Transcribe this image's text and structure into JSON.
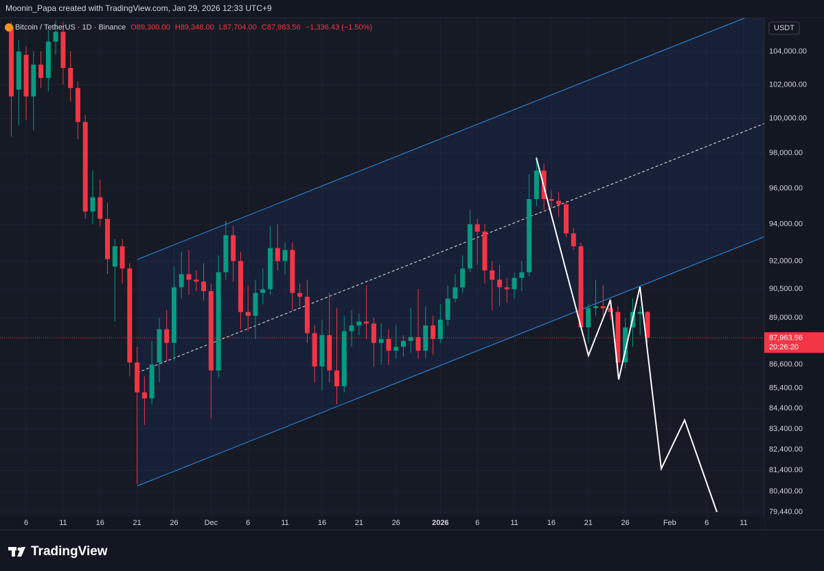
{
  "header_text": "Moonin_Papa created with TradingView.com, Jan 29, 2026 12:33 UTC+9",
  "branding": "TradingView",
  "chart_data": {
    "type": "candlestick",
    "legend": {
      "symbol": "Bitcoin / TetherUS · 1D · Binance",
      "open": "O89,300.00",
      "high": "H89,348.00",
      "low": "L87,704.00",
      "close": "C87,963.56",
      "change": "−1,336.43 (−1.50%)"
    },
    "currency": "USDT",
    "last_price_label": "87,963.56",
    "countdown": "20:26:20",
    "log_scale": true,
    "grid": true,
    "up_color": "#089981",
    "down_color": "#f23645",
    "categories": [
      null,
      null,
      "6",
      null,
      null,
      null,
      null,
      "11",
      null,
      null,
      null,
      null,
      "16",
      null,
      null,
      null,
      null,
      "21",
      null,
      null,
      null,
      null,
      "26",
      null,
      null,
      null,
      null,
      "Dec",
      null,
      null,
      null,
      null,
      "6",
      null,
      null,
      null,
      null,
      "11",
      null,
      null,
      null,
      null,
      "16",
      null,
      null,
      null,
      null,
      "21",
      null,
      null,
      null,
      null,
      "26",
      null,
      null,
      null,
      null,
      null,
      "2026",
      null,
      null,
      null,
      null,
      "6",
      null,
      null,
      null,
      null,
      "11",
      null,
      null,
      null,
      null,
      "16",
      null,
      null,
      null,
      null,
      "21",
      null,
      null,
      null,
      null,
      "26",
      null,
      null,
      null,
      null,
      null,
      "Feb",
      null,
      null,
      null,
      null,
      "6",
      null,
      null,
      null,
      null,
      "11"
    ],
    "open": [
      105500,
      101700,
      103800,
      101300,
      103200,
      102400,
      104600,
      105200,
      103000,
      101800,
      99800,
      94700,
      95500,
      94300,
      91700,
      92800,
      91600,
      86700,
      85200,
      84900,
      86700,
      88400,
      87700,
      90600,
      91300,
      91000,
      90900,
      90400,
      86300,
      91400,
      93400,
      92000,
      89300,
      89100,
      90300,
      90500,
      92700,
      92000,
      92600,
      90300,
      90100,
      88200,
      86500,
      88100,
      86300,
      85500,
      88300,
      88600,
      88800,
      88700,
      87700,
      87900,
      87300,
      87500,
      87800,
      88000,
      87300,
      88600,
      87900,
      88900,
      90000,
      90600,
      91600,
      94000,
      93600,
      91500,
      91000,
      90600,
      90500,
      91100,
      91400,
      95400,
      97000,
      95400,
      95300,
      95100,
      93500,
      92800,
      88500,
      89500,
      89600,
      89500,
      89300,
      86700,
      88500,
      89200,
      89300,
      null,
      null,
      null,
      null,
      null,
      null,
      null,
      null,
      null,
      null,
      null,
      null,
      null
    ],
    "high": [
      105800,
      104700,
      104300,
      104000,
      104000,
      105300,
      105900,
      105800,
      104000,
      102200,
      100200,
      97000,
      96500,
      95200,
      93200,
      93200,
      91900,
      87500,
      86000,
      87800,
      89000,
      89400,
      91700,
      92500,
      92600,
      91500,
      91900,
      90800,
      92300,
      94200,
      93900,
      92500,
      90700,
      91000,
      91600,
      93900,
      94000,
      93000,
      93000,
      90800,
      91000,
      88600,
      88900,
      90300,
      89500,
      89100,
      89400,
      89200,
      90700,
      89000,
      88700,
      88400,
      88600,
      88100,
      89500,
      90500,
      89600,
      89100,
      89700,
      90700,
      91300,
      92300,
      94800,
      94300,
      94000,
      92000,
      91800,
      91100,
      91400,
      92000,
      96800,
      97800,
      97400,
      95900,
      95800,
      95300,
      93800,
      93000,
      89700,
      91000,
      90700,
      90000,
      89600,
      89000,
      90000,
      89600,
      89348,
      null,
      null,
      null,
      null,
      null,
      null,
      null,
      null,
      null,
      null,
      null,
      null,
      null
    ],
    "low": [
      98950,
      99600,
      99900,
      99300,
      101800,
      101600,
      103800,
      102000,
      101000,
      98800,
      94300,
      94000,
      93900,
      91300,
      88800,
      90800,
      86000,
      80750,
      83600,
      84600,
      85700,
      86800,
      86800,
      90000,
      90200,
      90400,
      89900,
      83900,
      85900,
      91000,
      90900,
      88400,
      88300,
      87900,
      89700,
      90200,
      91500,
      91300,
      89400,
      89600,
      87700,
      85700,
      85300,
      85700,
      84600,
      85200,
      87500,
      88100,
      87900,
      86500,
      86600,
      86600,
      86900,
      87000,
      87200,
      86900,
      86900,
      87100,
      87700,
      88600,
      89800,
      90300,
      91400,
      91800,
      90800,
      89400,
      89600,
      89800,
      90000,
      90400,
      91200,
      95000,
      94800,
      94900,
      94400,
      93300,
      92600,
      88400,
      87700,
      89100,
      89100,
      88900,
      86400,
      86400,
      87500,
      88100,
      87704,
      null,
      null,
      null,
      null,
      null,
      null,
      null,
      null,
      null,
      null,
      null,
      null,
      null
    ],
    "close": [
      101300,
      104000,
      101300,
      103200,
      102400,
      104600,
      105200,
      103000,
      101800,
      99800,
      94700,
      95500,
      94300,
      92100,
      92800,
      91600,
      86700,
      85200,
      84900,
      86600,
      88400,
      87700,
      90600,
      91300,
      91000,
      90900,
      90400,
      86300,
      91400,
      93400,
      92000,
      89300,
      89100,
      90300,
      90500,
      92700,
      92000,
      92600,
      90300,
      90100,
      88200,
      86500,
      88100,
      86300,
      85500,
      88300,
      88600,
      88800,
      88700,
      87700,
      87900,
      87300,
      87500,
      87800,
      88000,
      87300,
      88600,
      87900,
      88900,
      90000,
      90600,
      91600,
      94000,
      93600,
      91500,
      91000,
      90600,
      90500,
      91100,
      91400,
      95400,
      97000,
      95400,
      95300,
      95100,
      93500,
      92800,
      88500,
      89500,
      89600,
      89500,
      89300,
      86700,
      88500,
      89300,
      89300,
      87963.56,
      null,
      null,
      null,
      null,
      null,
      null,
      null,
      null,
      null,
      null,
      null,
      null,
      null
    ],
    "ylim": [
      79250,
      105980
    ],
    "yticks": [
      {
        "value": 104000,
        "label": "104,000.00"
      },
      {
        "value": 102000,
        "label": "102,000.00"
      },
      {
        "value": 100000,
        "label": "100,000.00"
      },
      {
        "value": 98000,
        "label": "98,000.00"
      },
      {
        "value": 96000,
        "label": "96,000.00"
      },
      {
        "value": 94000,
        "label": "94,000.00"
      },
      {
        "value": 92000,
        "label": "92,000.00"
      },
      {
        "value": 90500,
        "label": "90,500.00"
      },
      {
        "value": 89000,
        "label": "89,000.00"
      },
      {
        "value": 86600,
        "label": "86,600.00"
      },
      {
        "value": 85400,
        "label": "85,400.00"
      },
      {
        "value": 84400,
        "label": "84,400.00"
      },
      {
        "value": 83400,
        "label": "83,400.00"
      },
      {
        "value": 82400,
        "label": "82,400.00"
      },
      {
        "value": 81400,
        "label": "81,400.00"
      },
      {
        "value": 80400,
        "label": "80,400.00"
      },
      {
        "value": 79440,
        "label": "79,440.00"
      }
    ]
  }
}
